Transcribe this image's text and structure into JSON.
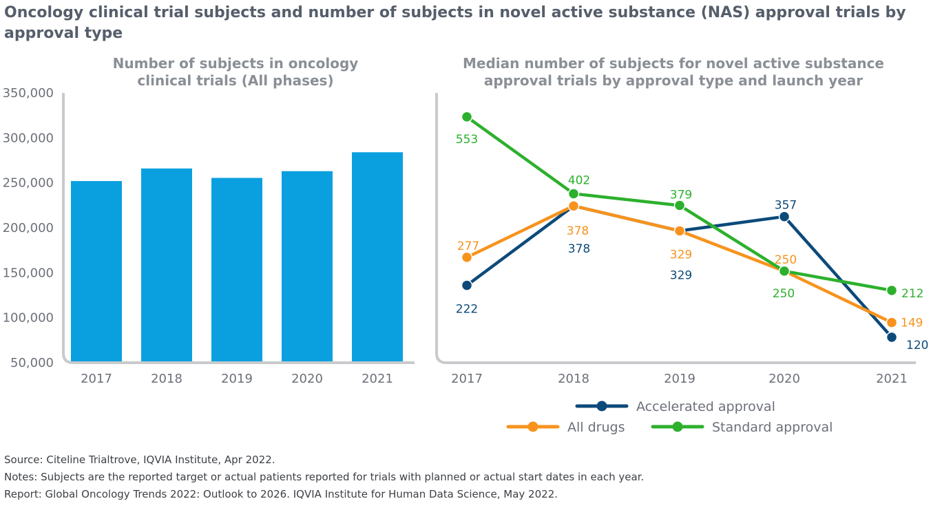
{
  "title": "Oncology clinical trial subjects and number of subjects in novel active substance (NAS) approval trials by approval type",
  "colors": {
    "bar": "#0aa0e0",
    "accelerated": "#0c4a7a",
    "all_drugs": "#f7931d",
    "standard": "#2db02d",
    "axis": "#c8cacd"
  },
  "footer": {
    "source": "Source: Citeline Trialtrove, IQVIA Institute, Apr 2022.",
    "notes": "Notes: Subjects are the reported target or actual patients reported for trials with planned or actual start dates in each year.",
    "report": "Report: Global Oncology Trends 2022: Outlook to 2026. IQVIA Institute for Human Data Science, May 2022."
  },
  "chart_data": [
    {
      "type": "bar",
      "title_lines": [
        "Number of subjects in oncology",
        "clinical trials (All phases)"
      ],
      "categories": [
        "2017",
        "2018",
        "2019",
        "2020",
        "2021"
      ],
      "values": [
        252000,
        266000,
        255500,
        263000,
        284000
      ],
      "ylim": [
        50000,
        350000
      ],
      "yticks": [
        {
          "value": 50000,
          "label": "50,000"
        },
        {
          "value": 100000,
          "label": "100,000"
        },
        {
          "value": 150000,
          "label": "150,000"
        },
        {
          "value": 200000,
          "label": "200,000"
        },
        {
          "value": 250000,
          "label": "250,000"
        },
        {
          "value": 300000,
          "label": "300,000"
        },
        {
          "value": 350000,
          "label": "350,000"
        }
      ],
      "grid": false
    },
    {
      "type": "line",
      "title_lines": [
        "Median number of subjects for novel active substance",
        "approval trials by approval type and launch year"
      ],
      "categories": [
        "2017",
        "2018",
        "2019",
        "2020",
        "2021"
      ],
      "ylim": [
        70,
        600
      ],
      "y_axis_labels": false,
      "series": [
        {
          "name": "Accelerated approval",
          "color_key": "accelerated",
          "values": [
            222,
            378,
            329,
            357,
            120
          ],
          "labels": [
            "222",
            "378",
            "329",
            "357",
            "120"
          ]
        },
        {
          "name": "All drugs",
          "color_key": "all_drugs",
          "values": [
            277,
            378,
            329,
            250,
            149
          ],
          "labels": [
            "277",
            "378",
            "329",
            "250",
            "149"
          ]
        },
        {
          "name": "Standard approval",
          "color_key": "standard",
          "values": [
            553,
            402,
            379,
            250,
            212
          ],
          "labels": [
            "553",
            "402",
            "379",
            "250",
            "212"
          ]
        }
      ],
      "legend": {
        "position": "bottom"
      }
    }
  ]
}
